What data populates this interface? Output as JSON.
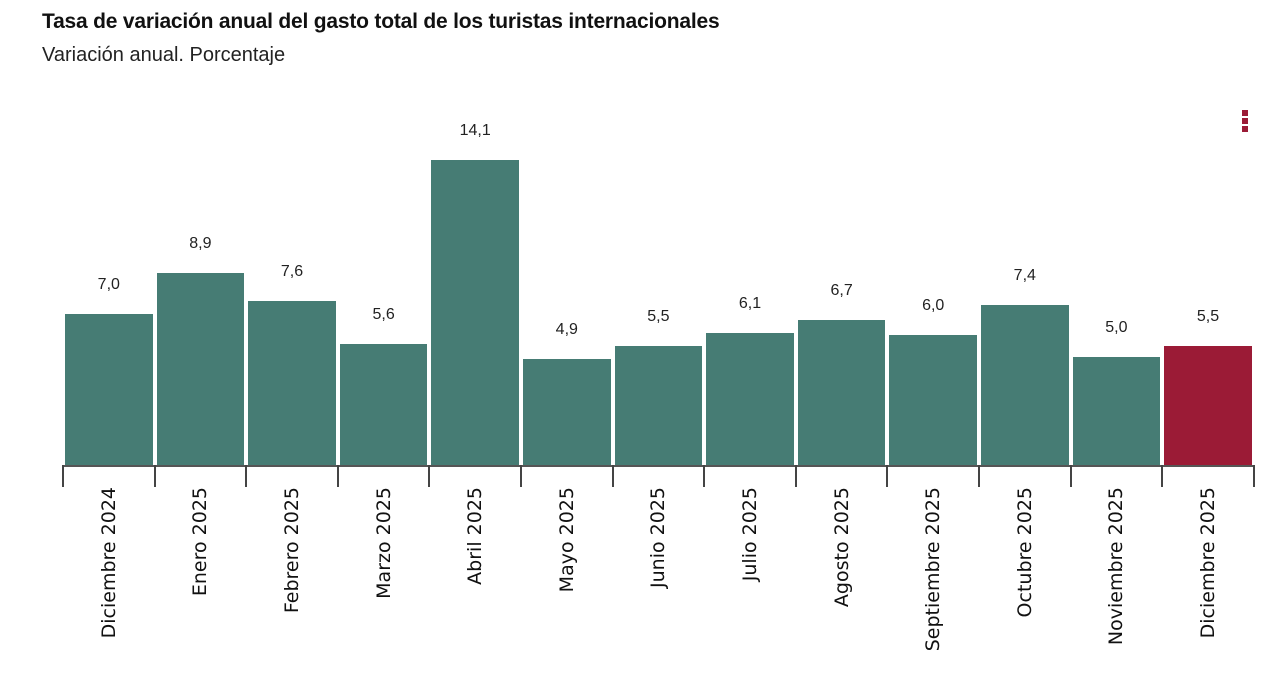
{
  "header": {
    "title": "Tasa de variación anual del gasto total de los turistas internacionales",
    "subtitle": "Variación anual. Porcentaje"
  },
  "menu": {
    "icon": "vertical-dots-menu-icon"
  },
  "colors": {
    "default_bar": "#467c74",
    "highlight_bar": "#9b1b36",
    "menu": "#9b1b36"
  },
  "chart_data": {
    "type": "bar",
    "title": "Tasa de variación anual del gasto total de los turistas internacionales",
    "subtitle": "Variación anual. Porcentaje",
    "xlabel": "",
    "ylabel": "",
    "grid": false,
    "legend": null,
    "ylim": [
      0,
      15
    ],
    "categories": [
      "Diciembre 2024",
      "Enero 2025",
      "Febrero 2025",
      "Marzo 2025",
      "Abril 2025",
      "Mayo 2025",
      "Junio 2025",
      "Julio 2025",
      "Agosto 2025",
      "Septiembre 2025",
      "Octubre 2025",
      "Noviembre 2025",
      "Diciembre 2025"
    ],
    "values": [
      7.0,
      8.9,
      7.6,
      5.6,
      14.1,
      4.9,
      5.5,
      6.1,
      6.7,
      6.0,
      7.4,
      5.0,
      5.5
    ],
    "value_labels": [
      "7,0",
      "8,9",
      "7,6",
      "5,6",
      "14,1",
      "4,9",
      "5,5",
      "6,1",
      "6,7",
      "6,0",
      "7,4",
      "5,0",
      "5,5"
    ],
    "highlighted_index": 12
  }
}
